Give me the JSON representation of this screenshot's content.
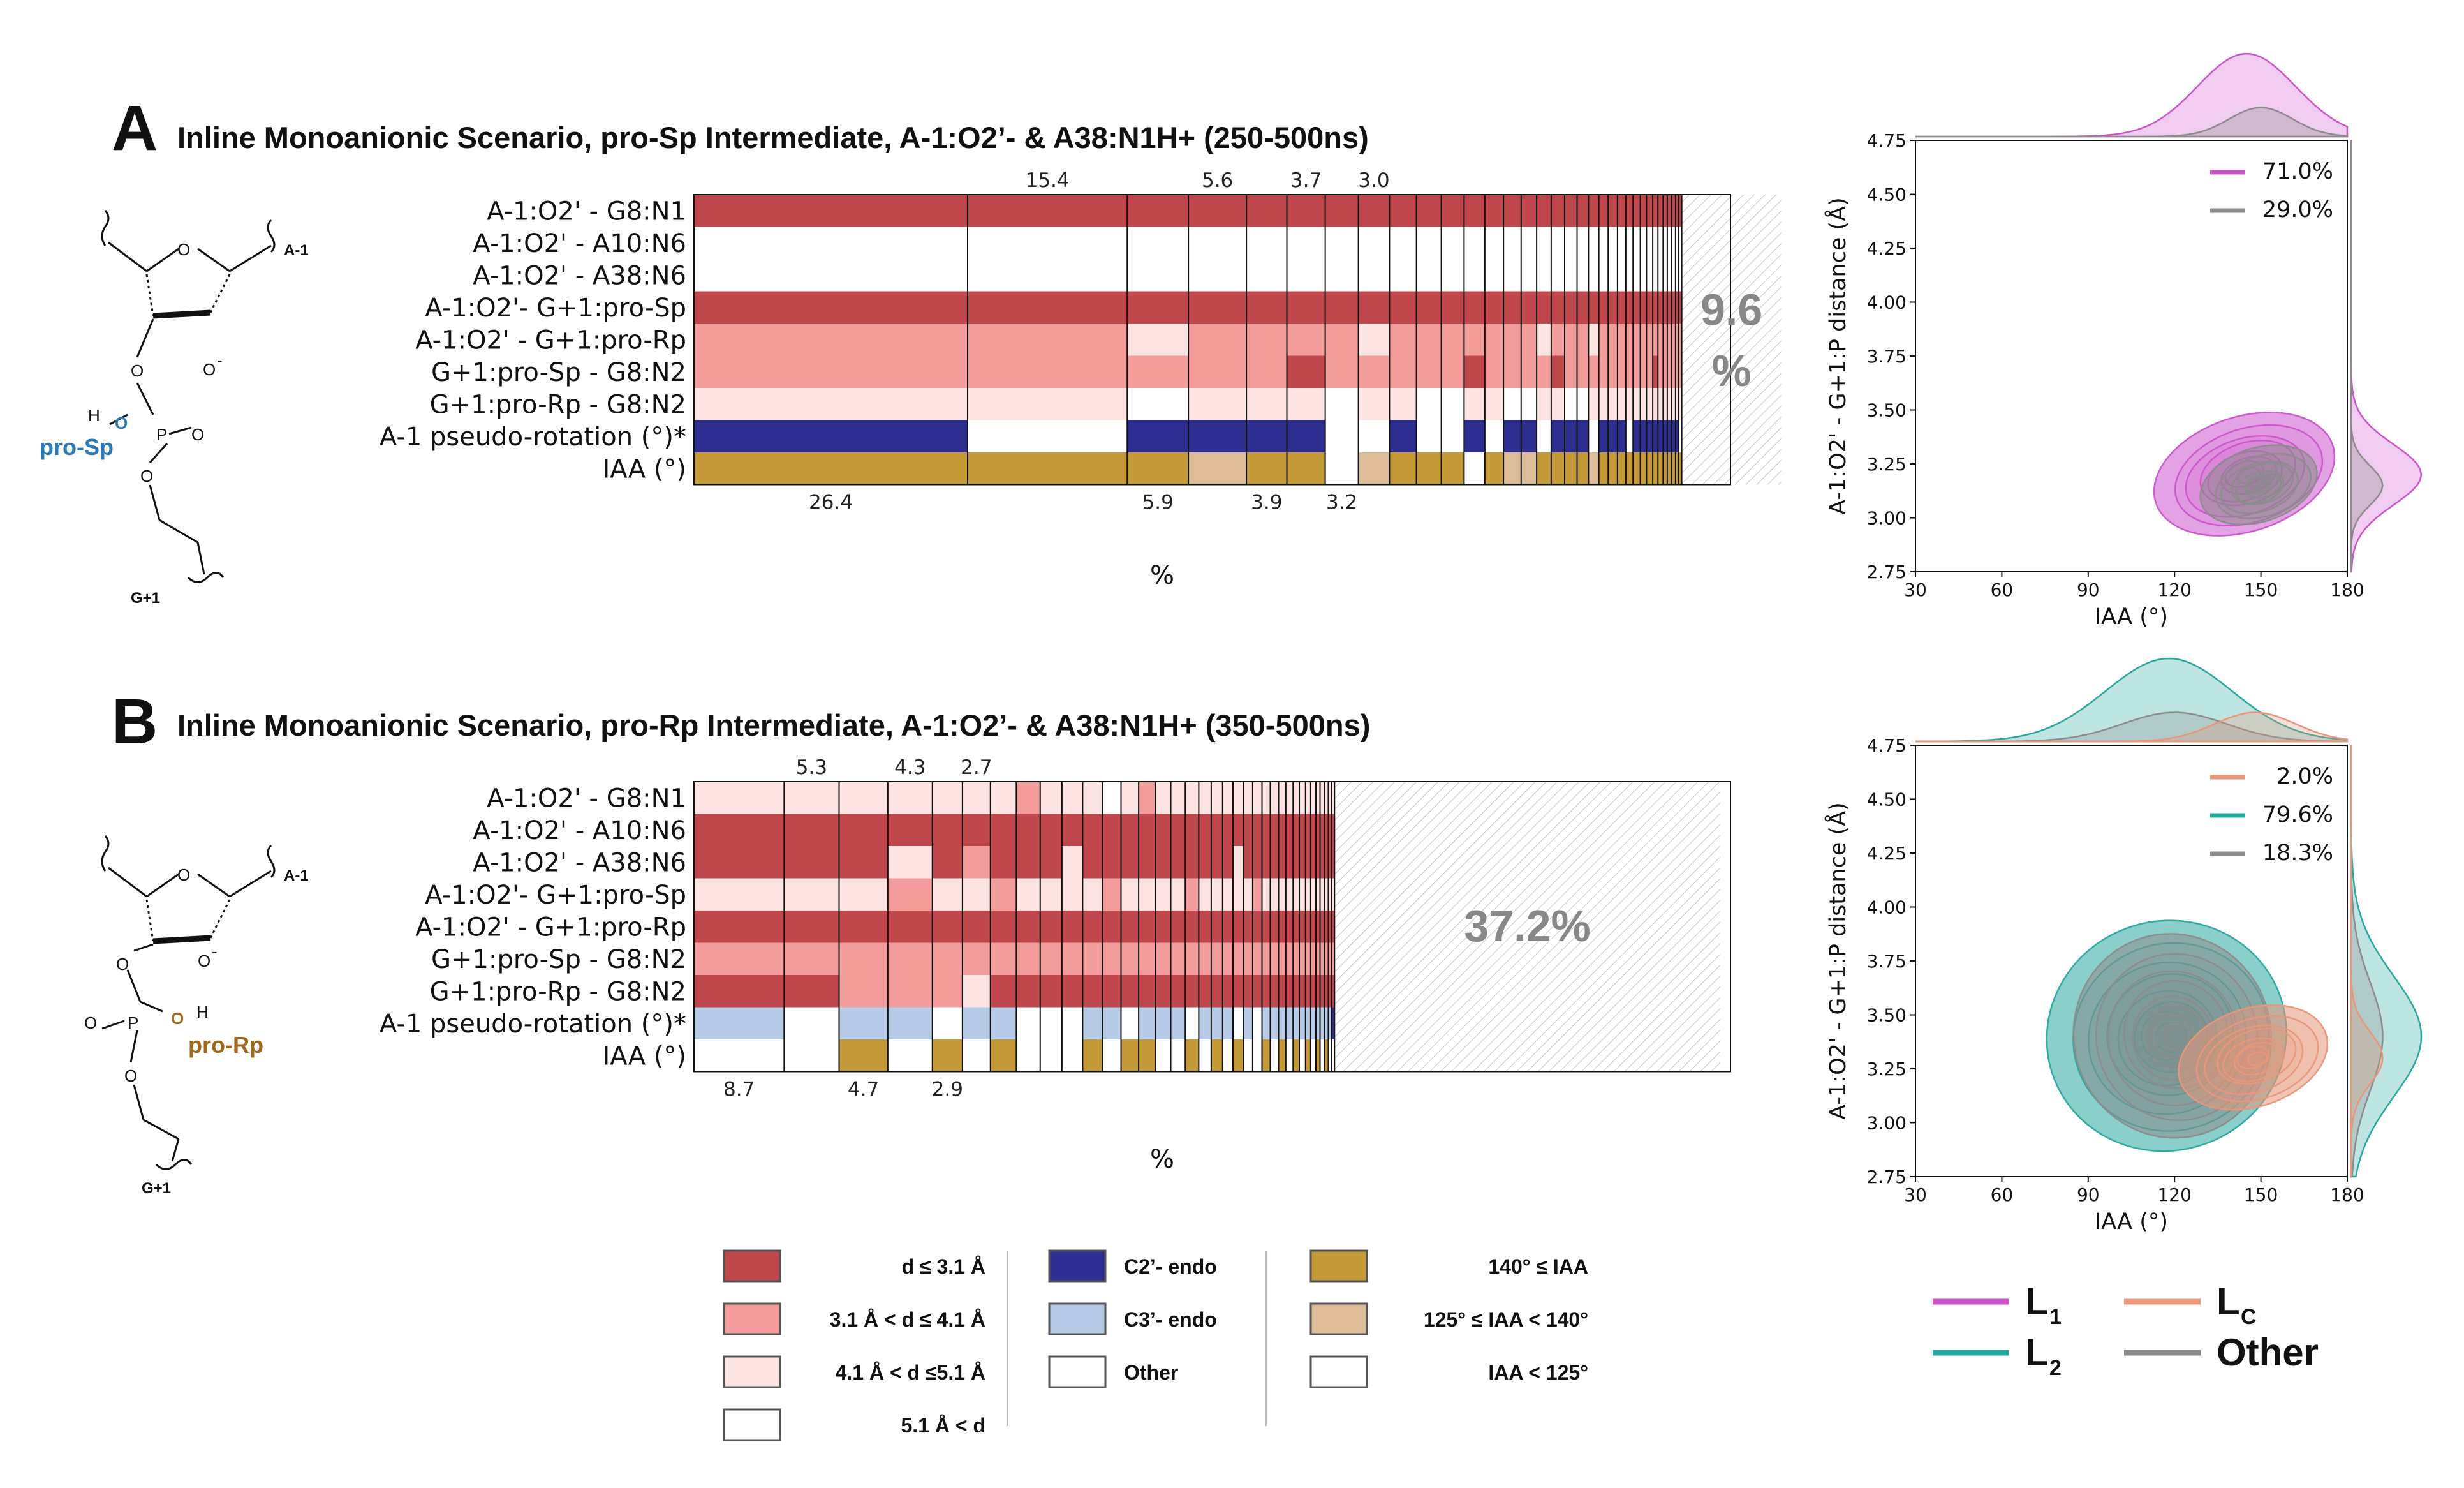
{
  "colors": {
    "d_le_3_1": "#c0474c",
    "d_3_1_4_1": "#f29c9c",
    "d_4_1_5_1": "#fde4e2",
    "c2_endo": "#2e2e91",
    "c3_endo": "#b8cbe6",
    "iaa_140": "#c49a38",
    "iaa_125_140": "#dcbb98",
    "L1": "#cc55cc",
    "L2": "#2aa8a0",
    "Lc": "#e8977a",
    "other": "#8c8c8c",
    "proSp": "#2a7ab8",
    "proRp": "#a0681c"
  },
  "rows": [
    "A-1:O2' - G8:N1",
    "A-1:O2' - A10:N6",
    "A-1:O2' - A38:N6",
    "A-1:O2'- G+1:pro-Sp",
    "A-1:O2' - G+1:pro-Rp",
    "G+1:pro-Sp - G8:N2",
    "G+1:pro-Rp - G8:N2",
    "A-1 pseudo-rotation (°)*",
    "IAA (°)"
  ],
  "xlabel": "%",
  "chart_data": [
    {
      "type": "table",
      "panel": "A",
      "title": "Inline Monoanionic Scenario, pro-Sp Intermediate, A-1:O2’- & A38:N1H+ (250-500ns)",
      "top_labels": [
        "15.4",
        "5.6",
        "3.7",
        "3.0"
      ],
      "bottom_labels": [
        "26.4",
        "5.9",
        "3.9",
        "3.2"
      ],
      "remainder_label_line1": "9.6",
      "remainder_label_line2": "%",
      "remainder_pct": 9.6,
      "column_widths_pct": [
        26.4,
        15.4,
        5.9,
        5.6,
        3.9,
        3.7,
        3.2,
        3.0,
        2.6,
        2.4,
        2.2,
        2.0,
        1.8,
        1.7,
        1.5,
        1.4,
        1.3,
        1.2,
        1.1,
        1.0,
        0.9,
        0.9,
        0.8,
        0.7,
        0.7,
        0.6,
        0.6,
        0.5,
        0.5,
        0.4,
        0.4,
        0.4,
        0.3,
        0.3
      ],
      "cells": [
        "DDDDDDDDDDDDDDDDDDDDDDDDDDDDDDDDDD",
        "WWWWWWWWWWWWWWWWWWWWWWWWWWWWWWWWWW",
        "WWWWWWWWWWWWWWWWWWWWWWWWWWWWWWWWWW",
        "DDDDDDDDDDDDDDDDDDDDDDDDDDDDDDDDDD",
        "MMLMMMMLMMMMMMMLMMMLMMMMMMMMMMMMMM",
        "MMMMMDMMMMMDMMMMDMMMMMMMMMMDMMMMMM",
        "LLWLLLWLLWWLLWWLLWWLLLLLLLLLLLLLLL",
        "CWCCCCWWCWWCWCCWCCCWCCCWCCCCCCCCCW",
        "GGGTGGWTGGGWGTTGGGGTGGGGGGGGGGGGGG"
      ]
    },
    {
      "type": "table",
      "panel": "B",
      "title": "Inline Monoanionic Scenario, pro-Rp Intermediate, A-1:O2’- & A38:N1H+ (350-500ns)",
      "top_labels": [
        "5.3",
        "4.3",
        "2.7"
      ],
      "bottom_labels": [
        "8.7",
        "4.7",
        "2.9"
      ],
      "remainder_label_line1": "37.2%",
      "remainder_label_line2": "",
      "remainder_pct": 37.2,
      "column_widths_pct": [
        8.7,
        5.3,
        4.7,
        4.3,
        2.9,
        2.7,
        2.5,
        2.3,
        2.1,
        2.0,
        1.9,
        1.8,
        1.7,
        1.6,
        1.5,
        1.4,
        1.3,
        1.2,
        1.1,
        1.0,
        1.0,
        0.9,
        0.9,
        0.8,
        0.8,
        0.7,
        0.7,
        0.6,
        0.6,
        0.5,
        0.5,
        0.4,
        0.4,
        0.4,
        0.3,
        0.3
      ],
      "cells": [
        "LLLLLLLMLLLWLMLLLLLLLLLLLLLLLLLLLLLL",
        "DDDDDDDDDDDDDDDDDDDDDDDDDDDDDDDDDDDD",
        "DDDLDMDDDLDDDDDDDDDDLDDDDDDDDDDDDDDD",
        "LLLMLLMLLLLMLLLLMLLLLLMLLLLLLLLLLLLL",
        "DDDDDDDDDDDDDDDDDDDDDDDDDDDDDDDDDDDD",
        "MMMMMMMMMMMMMMMMMMMMMMMMMMMMMMMMMMMM",
        "DDMMMLDDDDDDDDDDDDDDDDDDDDDDDDDDDDDD",
        "EWEEWEEWWWEEWEEEWEEEWEWEEEEEEEEEEEEC",
        "WWGWGWGWWWGWGGWWGWGWGWWGWGWGWGWGWGWW"
      ]
    },
    {
      "type": "scatter",
      "panel": "A-kde",
      "xlabel": "IAA (°)",
      "ylabel": "A-1:O2' - G+1:P distance (Å)",
      "xlim": [
        30,
        180
      ],
      "ylim": [
        2.75,
        4.75
      ],
      "xticks": [
        "30",
        "60",
        "90",
        "120",
        "150",
        "180"
      ],
      "yticks": [
        "2.75",
        "3.00",
        "3.25",
        "3.50",
        "3.75",
        "4.00",
        "4.25",
        "4.50",
        "4.75"
      ],
      "legend": [
        {
          "label": "71.0%",
          "color": "#cc55cc"
        },
        {
          "label": "29.0%",
          "color": "#8c8c8c"
        }
      ],
      "legend_position": "top-right",
      "series": [
        {
          "name": "L1",
          "center": [
            145,
            3.2
          ],
          "spread": [
            17,
            0.14
          ],
          "color": "#cc55cc"
        },
        {
          "name": "Other",
          "center": [
            150,
            3.15
          ],
          "spread": [
            11,
            0.09
          ],
          "color": "#8c8c8c"
        }
      ]
    },
    {
      "type": "scatter",
      "panel": "B-kde",
      "xlabel": "IAA (°)",
      "ylabel": "A-1:O2' - G+1:P distance (Å)",
      "xlim": [
        30,
        180
      ],
      "ylim": [
        2.75,
        4.75
      ],
      "xticks": [
        "30",
        "60",
        "90",
        "120",
        "150",
        "180"
      ],
      "yticks": [
        "2.75",
        "3.00",
        "3.25",
        "3.50",
        "3.75",
        "4.00",
        "4.25",
        "4.50",
        "4.75"
      ],
      "legend": [
        {
          "label": "2.0%",
          "color": "#e8977a"
        },
        {
          "label": "79.6%",
          "color": "#2aa8a0"
        },
        {
          "label": "18.3%",
          "color": "#8c8c8c"
        }
      ],
      "legend_position": "top-right",
      "series": [
        {
          "name": "L2",
          "center": [
            118,
            3.4
          ],
          "spread": [
            22,
            0.28
          ],
          "color": "#2aa8a0"
        },
        {
          "name": "Other",
          "center": [
            120,
            3.4
          ],
          "spread": [
            18,
            0.25
          ],
          "color": "#8c8c8c"
        },
        {
          "name": "Lc",
          "center": [
            148,
            3.3
          ],
          "spread": [
            14,
            0.12
          ],
          "color": "#e8977a"
        }
      ]
    }
  ],
  "distance_legend": [
    {
      "label": "d ≤ 3.1 Å",
      "color": "#c0474c"
    },
    {
      "label": "3.1 Å < d ≤ 4.1 Å",
      "color": "#f29c9c"
    },
    {
      "label": "4.1 Å < d ≤5.1 Å",
      "color": "#fde4e2"
    },
    {
      "label": "5.1 Å < d",
      "color": "#ffffff"
    }
  ],
  "pucker_legend": [
    {
      "label": "C2’- endo",
      "color": "#2e2e91"
    },
    {
      "label": "C3’- endo",
      "color": "#b8cbe6"
    },
    {
      "label": "Other",
      "color": "#ffffff"
    }
  ],
  "iaa_legend": [
    {
      "label": "140° ≤ IAA",
      "color": "#c49a38"
    },
    {
      "label": "125° ≤ IAA < 140°",
      "color": "#dcbb98"
    },
    {
      "label": "IAA < 125°",
      "color": "#ffffff"
    }
  ],
  "state_legend": [
    {
      "label": "L",
      "sub": "1",
      "color": "#cc55cc"
    },
    {
      "label": "L",
      "sub": "C",
      "color": "#e8977a"
    },
    {
      "label": "L",
      "sub": "2",
      "color": "#2aa8a0"
    },
    {
      "label": "Other",
      "sub": "",
      "color": "#8c8c8c"
    }
  ],
  "molecule_A": {
    "top_right": "A-1",
    "ring_o": "O",
    "o_minus": "O",
    "minus": "-",
    "bottom": "G+1",
    "p": "P",
    "o_left": "O",
    "o_right": "O",
    "o_bottom": "O",
    "o_up": "O",
    "h": "H",
    "label": "pro-Sp"
  },
  "molecule_B": {
    "top_right": "A-1",
    "ring_o": "O",
    "o_minus": "O",
    "minus": "-",
    "bottom": "G+1",
    "p": "P",
    "o_left": "O",
    "o_right": "O",
    "o_bottom": "O",
    "o_up": "O",
    "h": "H",
    "label": "pro-Rp"
  },
  "letters": {
    "A": "A",
    "B": "B"
  }
}
